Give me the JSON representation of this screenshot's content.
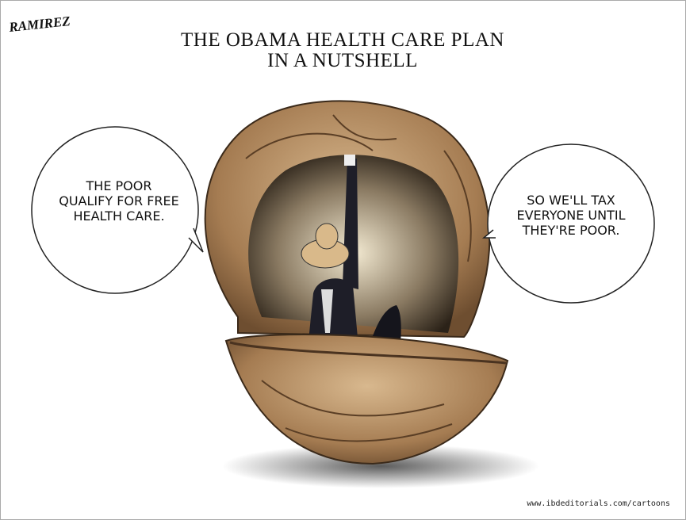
{
  "cartoon": {
    "signature": "RAMIREZ",
    "title": [
      "THE OBAMA HEALTH CARE PLAN",
      "IN A NUTSHELL"
    ],
    "bubbles": [
      {
        "lines": [
          "THE POOR",
          "QUALIFY FOR FREE",
          "HEALTH CARE."
        ]
      },
      {
        "lines": [
          "SO WE'LL TAX",
          "EVERYONE UNTIL",
          "THEY'RE POOR."
        ]
      }
    ],
    "credit": "www.ibdeditorials.com/cartoons"
  }
}
